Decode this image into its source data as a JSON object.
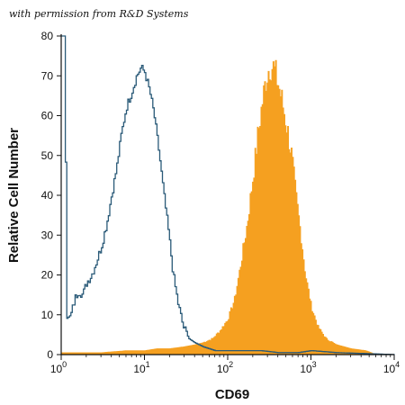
{
  "watermark": "with permission from R&D Systems",
  "chart_data": {
    "type": "histogram",
    "xlabel": "CD69",
    "ylabel": "Relative Cell Number",
    "x_scale": "log",
    "xlim": [
      1,
      10000
    ],
    "ylim": [
      0,
      80
    ],
    "x_ticks": [
      {
        "value": 1,
        "base": "10",
        "exp": "0"
      },
      {
        "value": 10,
        "base": "10",
        "exp": "1"
      },
      {
        "value": 100,
        "base": "10",
        "exp": "2"
      },
      {
        "value": 1000,
        "base": "10",
        "exp": "3"
      },
      {
        "value": 10000,
        "base": "10",
        "exp": "4"
      }
    ],
    "y_ticks": [
      0,
      10,
      20,
      30,
      40,
      50,
      60,
      70,
      80
    ],
    "grid": false,
    "series": [
      {
        "style": "outline",
        "color": "#2a5a78",
        "points": [
          [
            1,
            80
          ],
          [
            1.1,
            80
          ],
          [
            1.15,
            9
          ],
          [
            1.3,
            10
          ],
          [
            1.45,
            14
          ],
          [
            1.6,
            16
          ],
          [
            1.8,
            15
          ],
          [
            2,
            18
          ],
          [
            2.3,
            20
          ],
          [
            2.6,
            23
          ],
          [
            3,
            27
          ],
          [
            3.5,
            33
          ],
          [
            4,
            40
          ],
          [
            4.6,
            47
          ],
          [
            5.2,
            55
          ],
          [
            6,
            62
          ],
          [
            7,
            66
          ],
          [
            8,
            70
          ],
          [
            9,
            72
          ],
          [
            10,
            71
          ],
          [
            11.5,
            66
          ],
          [
            13,
            60
          ],
          [
            15,
            50
          ],
          [
            17,
            40
          ],
          [
            19.5,
            30
          ],
          [
            22,
            20
          ],
          [
            25,
            13
          ],
          [
            29,
            7
          ],
          [
            34,
            4
          ],
          [
            40,
            3
          ],
          [
            50,
            2
          ],
          [
            70,
            1
          ],
          [
            100,
            1
          ],
          [
            150,
            1
          ],
          [
            250,
            1
          ],
          [
            400,
            0.5
          ],
          [
            700,
            0.5
          ],
          [
            1000,
            1
          ],
          [
            2000,
            0.5
          ],
          [
            4000,
            0.3
          ],
          [
            10000,
            0
          ]
        ]
      },
      {
        "style": "filled",
        "color": "#f5a020",
        "points": [
          [
            1,
            0.5
          ],
          [
            3,
            0.5
          ],
          [
            6,
            1
          ],
          [
            10,
            1
          ],
          [
            14,
            1.5
          ],
          [
            20,
            1.5
          ],
          [
            30,
            2
          ],
          [
            40,
            2.5
          ],
          [
            50,
            3
          ],
          [
            65,
            4
          ],
          [
            80,
            6
          ],
          [
            100,
            9
          ],
          [
            120,
            14
          ],
          [
            140,
            22
          ],
          [
            170,
            33
          ],
          [
            200,
            45
          ],
          [
            230,
            56
          ],
          [
            260,
            64
          ],
          [
            290,
            70
          ],
          [
            320,
            73
          ],
          [
            350,
            72
          ],
          [
            400,
            68
          ],
          [
            450,
            63
          ],
          [
            500,
            58
          ],
          [
            580,
            50
          ],
          [
            650,
            40
          ],
          [
            750,
            30
          ],
          [
            850,
            20
          ],
          [
            1000,
            12
          ],
          [
            1200,
            7
          ],
          [
            1500,
            4
          ],
          [
            2000,
            2.5
          ],
          [
            3000,
            1.5
          ],
          [
            4500,
            1
          ],
          [
            6000,
            0
          ]
        ]
      }
    ]
  }
}
